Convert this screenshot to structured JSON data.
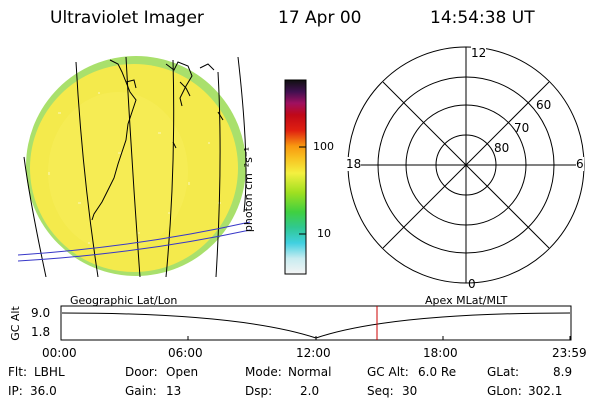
{
  "header": {
    "title": "Ultraviolet Imager",
    "date": "17 Apr 00",
    "time": "14:54:38 UT"
  },
  "colorbar": {
    "unit_label": "photon cm⁻²s⁻¹",
    "tick_100": "100",
    "tick_10": "10"
  },
  "polar": {
    "mlt_top": "12",
    "mlt_left": "18",
    "mlt_right": "6",
    "mlt_bottom": "0",
    "lat_60": "60",
    "lat_70": "70",
    "lat_80": "80"
  },
  "coords": {
    "left_label": "Geographic Lat/Lon",
    "right_label": "Apex MLat/MLT"
  },
  "altitude_plot": {
    "axis_label": "GC Alt",
    "y_max": "9.0",
    "y_min": "1.8",
    "x_ticks": [
      "00:00",
      "06:00",
      "12:00",
      "18:00",
      "23:59"
    ]
  },
  "status": {
    "flt_label": "Flt:",
    "flt_value": "LBHL",
    "ip_label": "IP:",
    "ip_value": "36.0",
    "door_label": "Door:",
    "door_value": "Open",
    "gain_label": "Gain:",
    "gain_value": "13",
    "mode_label": "Mode:",
    "mode_value": "Normal",
    "dsp_label": "Dsp:",
    "dsp_value": "2.0",
    "gcalt_label": "GC Alt:",
    "gcalt_value": "6.0 Re",
    "seq_label": "Seq:",
    "seq_value": "30",
    "glat_label": "GLat:",
    "glat_value": "8.9",
    "glon_label": "GLon:",
    "glon_value": "302.1"
  },
  "colors": {
    "disk_fill": "#f4e94a",
    "disk_edge": "#a8e070",
    "orbit_line": "#3838c8",
    "current_time_marker": "#cc0000"
  }
}
